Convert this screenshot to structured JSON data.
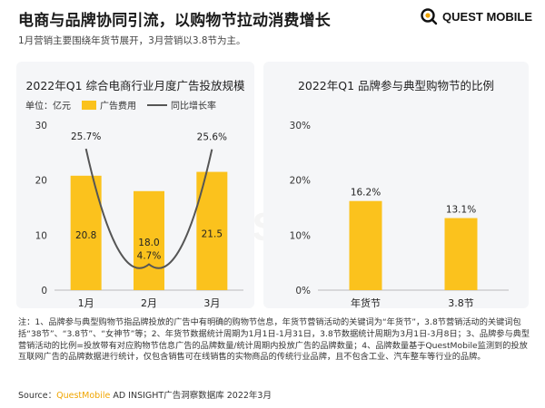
{
  "header": {
    "title": "电商与品牌协同引流，以购物节拉动消费增长",
    "subtitle": "1月营销主要围绕年货节展开，3月营销以3.8节为主。"
  },
  "logo": {
    "text": "QUEST MOBILE"
  },
  "watermark": "QUESTMOBILE",
  "colors": {
    "bar": "#fbc21d",
    "line": "#555555",
    "accent": "#f0a500"
  },
  "chart_data": [
    {
      "type": "bar",
      "title": "2022年Q1 综合电商行业月度广告投放规模",
      "unit_label": "单位：亿元",
      "categories": [
        "1月",
        "2月",
        "3月"
      ],
      "series": [
        {
          "name": "广告费用",
          "values": [
            20.8,
            18.0,
            21.5
          ],
          "labels": [
            "20.8",
            "18.0",
            "21.5"
          ]
        },
        {
          "name": "同比增长率",
          "type": "line",
          "values": [
            25.7,
            4.7,
            25.6
          ],
          "labels": [
            "25.7%",
            "4.7%",
            "25.6%"
          ]
        }
      ],
      "yticks": [
        "0",
        "10",
        "20",
        "30"
      ],
      "ylim": [
        0,
        30
      ],
      "y2lim": [
        0,
        30
      ],
      "legend": "top-left",
      "grid": false
    },
    {
      "type": "bar",
      "title": "2022年Q1 品牌参与典型购物节的比例",
      "categories": [
        "年货节",
        "3.8节"
      ],
      "series": [
        {
          "values": [
            16.2,
            13.1
          ],
          "labels": [
            "16.2%",
            "13.1%"
          ]
        }
      ],
      "yticks": [
        "0%",
        "10%",
        "20%",
        "30%"
      ],
      "ylim": [
        0,
        30
      ],
      "grid": false
    }
  ],
  "notes": "注：1、品牌参与典型购物节指品牌投放的广告中有明确的购物节信息，年货节营销活动的关键词为“年货节”，3.8节营销活动的关键词包括“38节”、“3.8节”、“女神节”等；2、年货节数据统计周期为1月1日-1月31日，3.8节数据统计周期为3月1日-3月8日；3、品牌参与典型营销活动的比例=投放带有对应购物节信息广告的品牌数量/统计周期内投放广告的品牌数量；4、品牌数量基于QuestMobile监测到的投放互联网广告的品牌数据进行统计，仅包含销售可在线销售的实物商品的传统行业品牌，且不包含工业、汽车整车等行业的品牌。",
  "source": {
    "prefix": "Source：",
    "highlight": "QuestMobile",
    "suffix": " AD INSIGHT广告洞察数据库 2022年3月"
  }
}
